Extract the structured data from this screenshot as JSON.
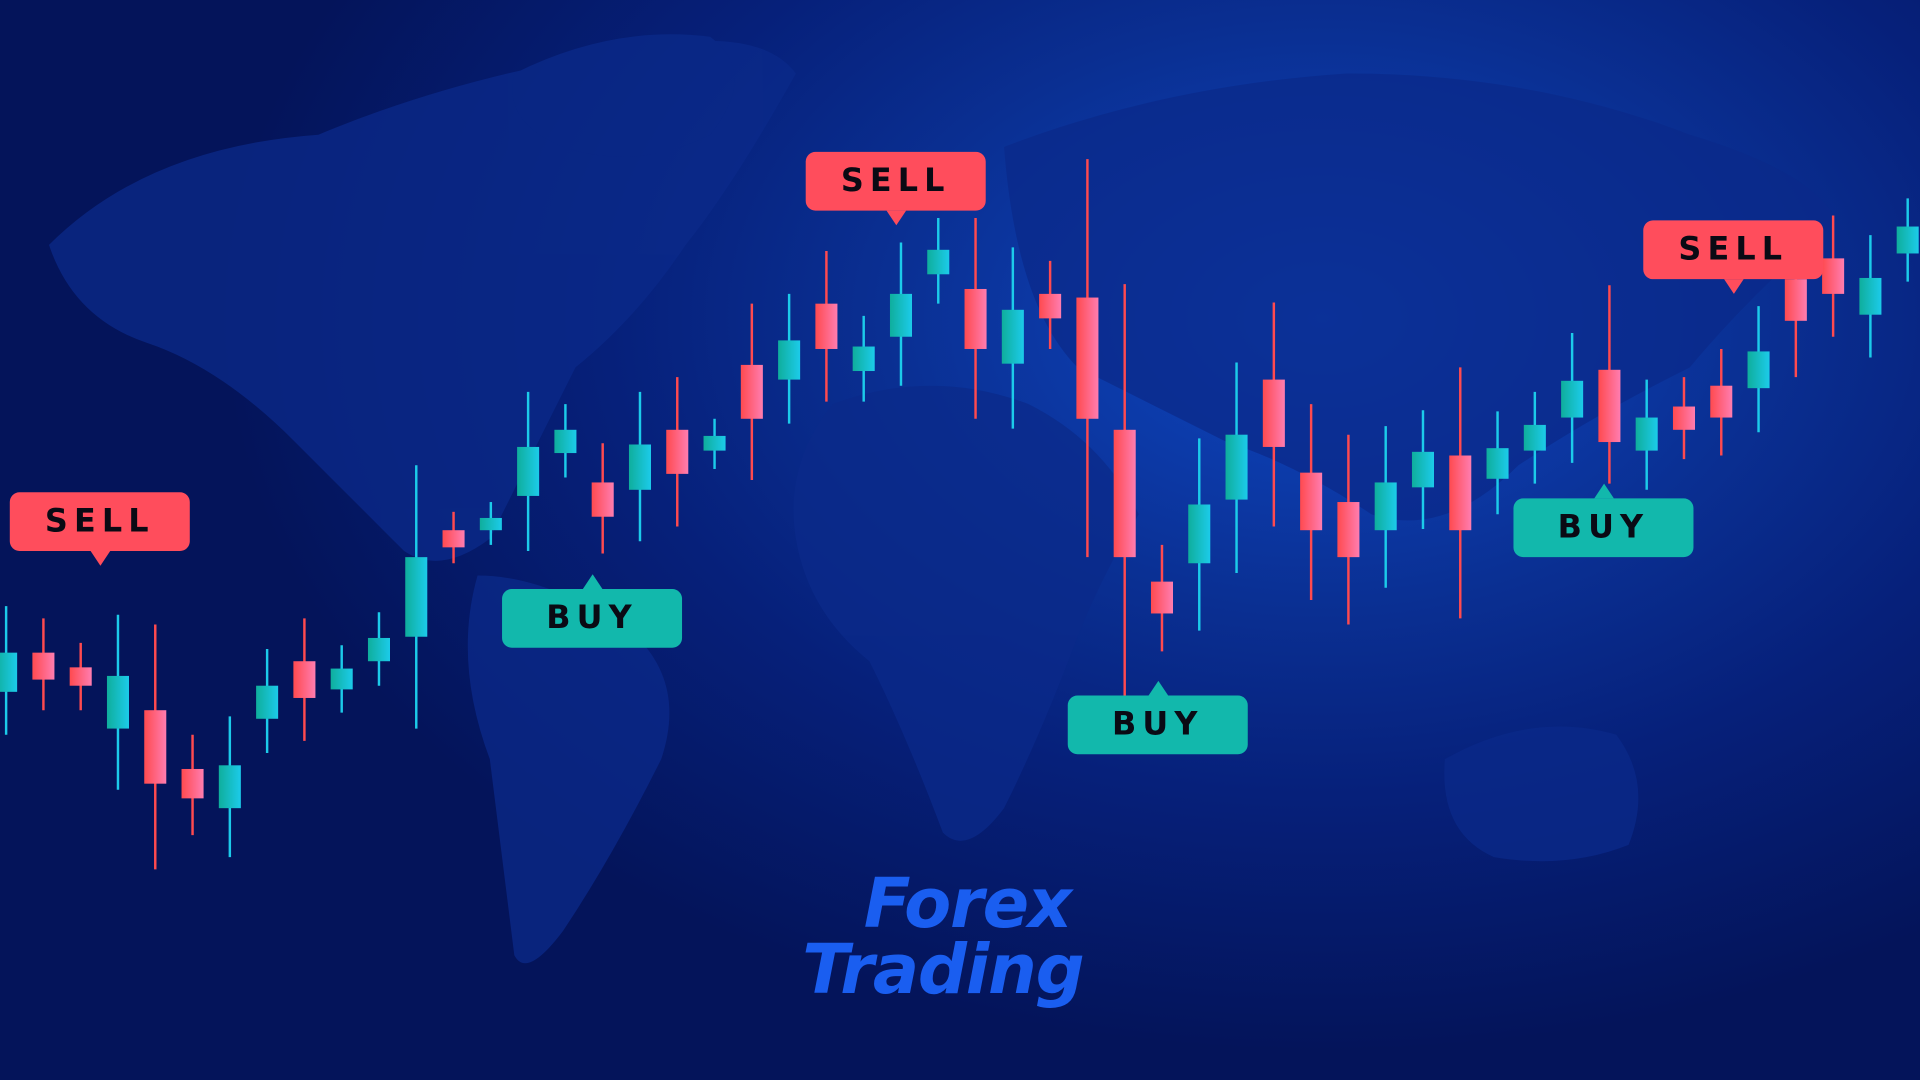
{
  "title": {
    "line1": "Forex",
    "line2": "Trading"
  },
  "signals": [
    {
      "type": "sell",
      "label": "SELL"
    },
    {
      "type": "sell",
      "label": "SELL"
    },
    {
      "type": "sell",
      "label": "SELL"
    },
    {
      "type": "buy",
      "label": "BUY"
    },
    {
      "type": "buy",
      "label": "BUY"
    },
    {
      "type": "buy",
      "label": "BUY"
    }
  ],
  "colors": {
    "bull_start": "#0fae9c",
    "bull_end": "#1ccbea",
    "bear_start": "#ff4a4f",
    "bear_end": "#ff7db0",
    "title": "#1a5ef0",
    "background": "#06207a"
  },
  "candles": [
    {
      "o": 317,
      "c": 349,
      "h": 387,
      "l": 282
    },
    {
      "o": 349,
      "c": 327,
      "h": 377,
      "l": 302
    },
    {
      "o": 337,
      "c": 322,
      "h": 357,
      "l": 302
    },
    {
      "o": 287,
      "c": 330,
      "h": 380,
      "l": 237
    },
    {
      "o": 302,
      "c": 242,
      "h": 372,
      "l": 172
    },
    {
      "o": 254,
      "c": 230,
      "h": 282,
      "l": 200
    },
    {
      "o": 222,
      "c": 257,
      "h": 297,
      "l": 182
    },
    {
      "o": 295,
      "c": 322,
      "h": 352,
      "l": 267
    },
    {
      "o": 342,
      "c": 312,
      "h": 377,
      "l": 277
    },
    {
      "o": 319,
      "c": 336,
      "h": 355,
      "l": 300
    },
    {
      "o": 342,
      "c": 361,
      "h": 382,
      "l": 322
    },
    {
      "o": 362,
      "c": 427,
      "h": 502,
      "l": 287
    },
    {
      "o": 449,
      "c": 435,
      "h": 464,
      "l": 422
    },
    {
      "o": 449,
      "c": 459,
      "h": 472,
      "l": 437
    },
    {
      "o": 477,
      "c": 517,
      "h": 562,
      "l": 432
    },
    {
      "o": 512,
      "c": 531,
      "h": 552,
      "l": 492
    },
    {
      "o": 488,
      "c": 460,
      "h": 520,
      "l": 430
    },
    {
      "o": 482,
      "c": 519,
      "h": 562,
      "l": 440
    },
    {
      "o": 531,
      "c": 495,
      "h": 574,
      "l": 452
    },
    {
      "o": 514,
      "c": 526,
      "h": 540,
      "l": 499
    },
    {
      "o": 584,
      "c": 540,
      "h": 634,
      "l": 490
    },
    {
      "o": 572,
      "c": 604,
      "h": 642,
      "l": 536
    },
    {
      "o": 634,
      "c": 597,
      "h": 677,
      "l": 554
    },
    {
      "o": 579,
      "c": 599,
      "h": 624,
      "l": 554
    },
    {
      "o": 607,
      "c": 642,
      "h": 684,
      "l": 567
    },
    {
      "o": 658,
      "c": 678,
      "h": 704,
      "l": 634
    },
    {
      "o": 646,
      "c": 597,
      "h": 704,
      "l": 540
    },
    {
      "o": 585,
      "c": 629,
      "h": 680,
      "l": 532
    },
    {
      "o": 642,
      "c": 622,
      "h": 669,
      "l": 597
    },
    {
      "o": 639,
      "c": 540,
      "h": 752,
      "l": 427
    },
    {
      "o": 531,
      "c": 427,
      "h": 650,
      "l": 314
    },
    {
      "o": 407,
      "c": 381,
      "h": 437,
      "l": 350
    },
    {
      "o": 422,
      "c": 470,
      "h": 524,
      "l": 367
    },
    {
      "o": 474,
      "c": 527,
      "h": 586,
      "l": 414
    },
    {
      "o": 572,
      "c": 517,
      "h": 635,
      "l": 452
    },
    {
      "o": 496,
      "c": 449,
      "h": 552,
      "l": 392
    },
    {
      "o": 472,
      "c": 427,
      "h": 527,
      "l": 372
    },
    {
      "o": 449,
      "c": 488,
      "h": 534,
      "l": 402
    },
    {
      "o": 484,
      "c": 513,
      "h": 547,
      "l": 450
    },
    {
      "o": 510,
      "c": 449,
      "h": 582,
      "l": 377
    },
    {
      "o": 491,
      "c": 516,
      "h": 546,
      "l": 462
    },
    {
      "o": 514,
      "c": 535,
      "h": 562,
      "l": 487
    },
    {
      "o": 541,
      "c": 571,
      "h": 610,
      "l": 504
    },
    {
      "o": 580,
      "c": 521,
      "h": 649,
      "l": 487
    },
    {
      "o": 514,
      "c": 541,
      "h": 572,
      "l": 482
    },
    {
      "o": 550,
      "c": 531,
      "h": 574,
      "l": 507
    },
    {
      "o": 567,
      "c": 541,
      "h": 597,
      "l": 510
    },
    {
      "o": 565,
      "c": 595,
      "h": 632,
      "l": 529
    },
    {
      "o": 654,
      "c": 620,
      "h": 672,
      "l": 574
    },
    {
      "o": 671,
      "c": 642,
      "h": 706,
      "l": 607
    },
    {
      "o": 625,
      "c": 655,
      "h": 690,
      "l": 590
    },
    {
      "o": 675,
      "c": 697,
      "h": 720,
      "l": 652
    }
  ]
}
